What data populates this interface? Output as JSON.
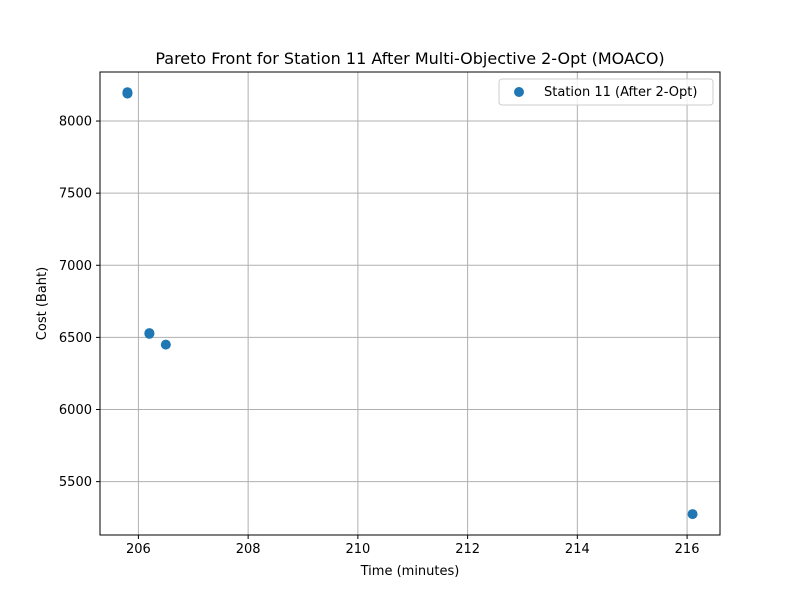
{
  "chart_data": {
    "type": "scatter",
    "title": "Pareto Front for Station 11 After Multi-Objective 2-Opt (MOACO)",
    "xlabel": "Time (minutes)",
    "ylabel": "Cost (Baht)",
    "xlim": [
      205.3,
      216.6
    ],
    "ylim": [
      5130,
      8340
    ],
    "xticks": [
      206,
      208,
      210,
      212,
      214,
      216
    ],
    "yticks": [
      5500,
      6000,
      6500,
      7000,
      7500,
      8000
    ],
    "grid": true,
    "legend_position": "top-right",
    "series": [
      {
        "name": "Station 11 (After 2-Opt)",
        "color": "#1f77b4",
        "points": [
          {
            "x": 205.8,
            "y": 8200
          },
          {
            "x": 205.8,
            "y": 8195
          },
          {
            "x": 205.8,
            "y": 8190
          },
          {
            "x": 206.2,
            "y": 6530
          },
          {
            "x": 206.2,
            "y": 6525
          },
          {
            "x": 206.5,
            "y": 6450
          },
          {
            "x": 216.1,
            "y": 5275
          }
        ]
      }
    ]
  }
}
